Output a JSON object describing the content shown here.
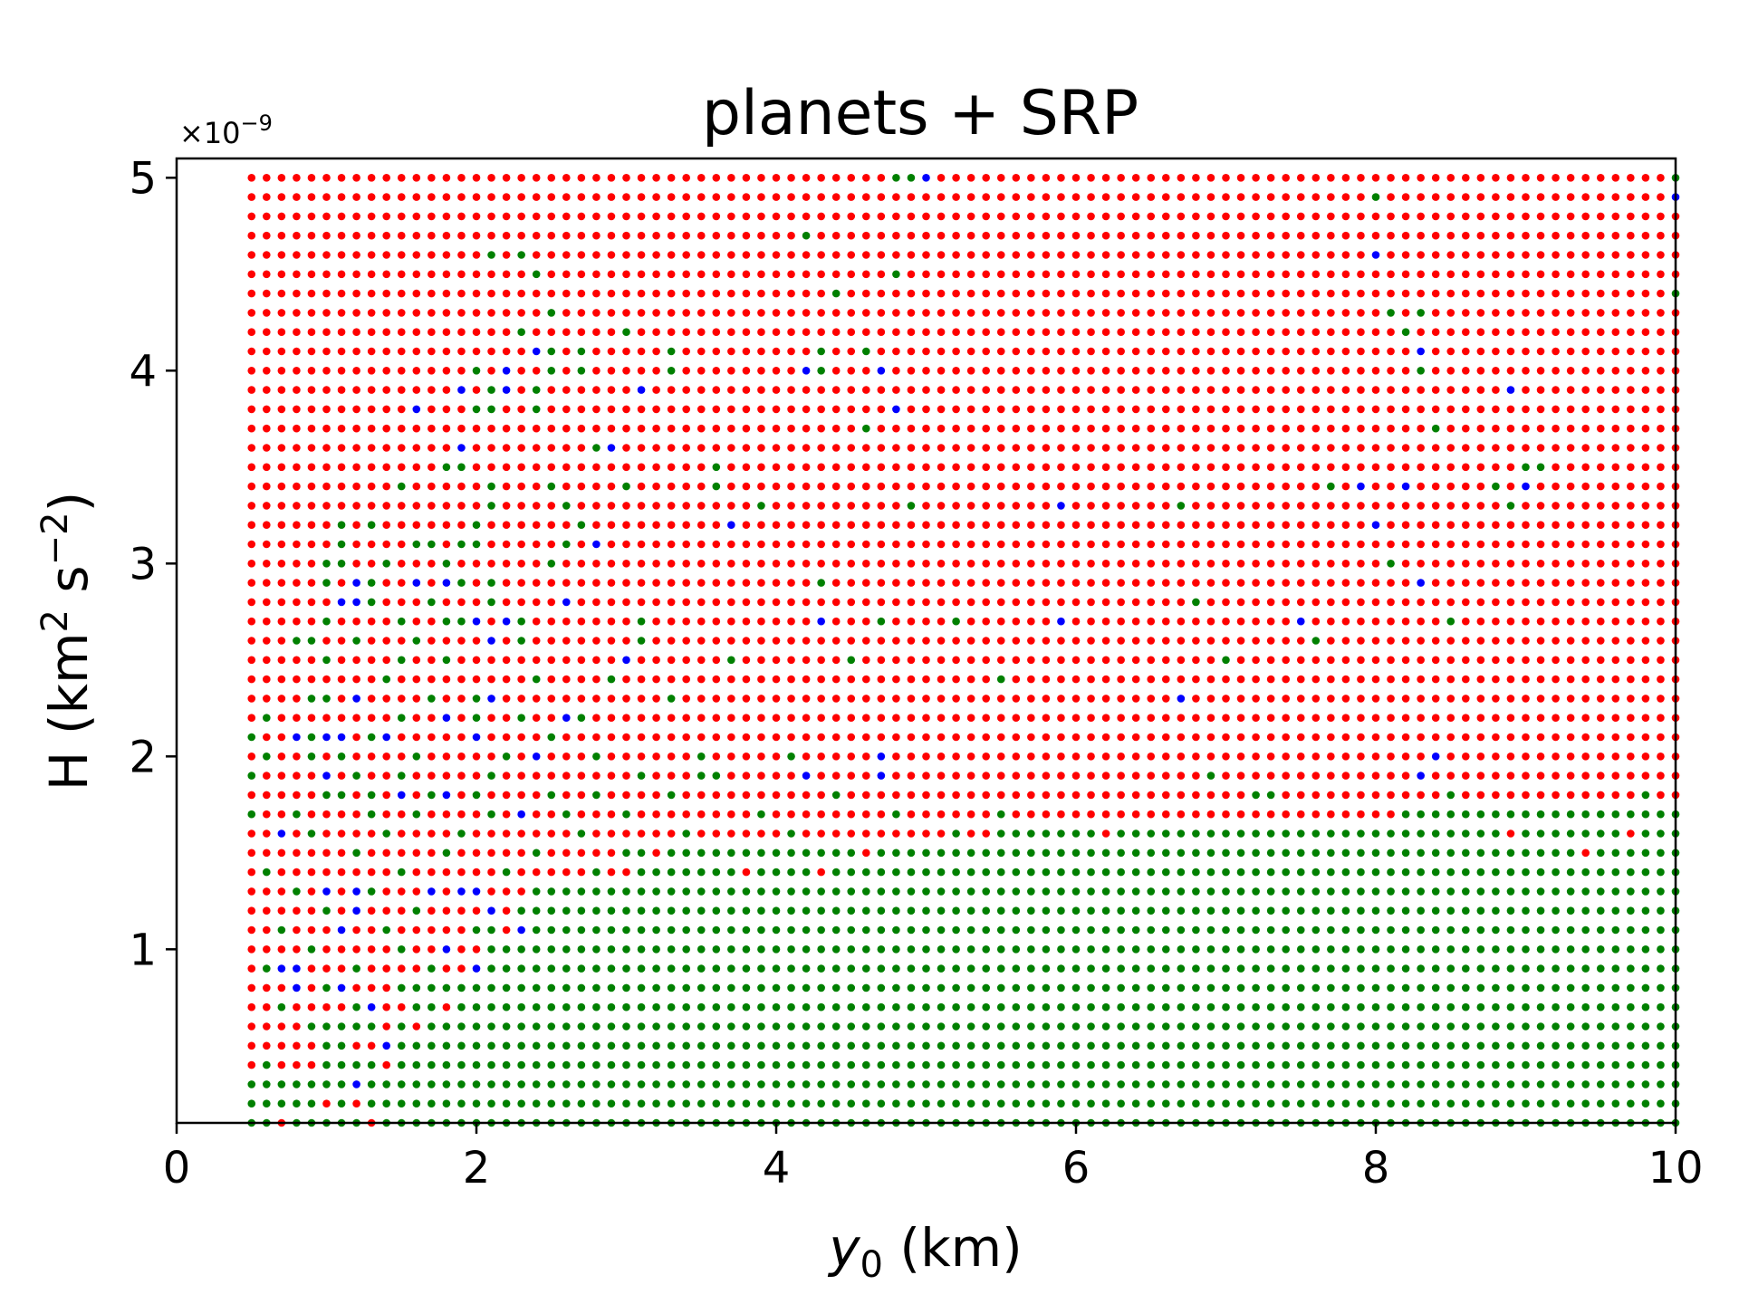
{
  "chart_data": {
    "type": "scatter",
    "title": "planets + SRP",
    "xlabel_var": "y",
    "xlabel_sub": "0",
    "xlabel_unit": " (km)",
    "ylabel_main": "H (km",
    "ylabel_sup1": "2",
    "ylabel_mid": " s",
    "ylabel_sup2": "−2",
    "ylabel_end": ")",
    "y_offset_text": "×10",
    "y_offset_exp": "−9",
    "xlim": [
      0,
      10
    ],
    "ylim": [
      0.1,
      5.1
    ],
    "y_scale": 1e-09,
    "xticks": [
      0,
      2,
      4,
      6,
      8,
      10
    ],
    "yticks": [
      1,
      2,
      3,
      4,
      5
    ],
    "x_grid": {
      "start": 0.5,
      "step": 0.1,
      "count": 96
    },
    "y_grid": {
      "start": 0.1,
      "step": 0.1,
      "count": 50
    },
    "colors": {
      "red": "#ff0000",
      "green": "#008000",
      "blue": "#0000ff"
    },
    "grid": false,
    "green_boundary_y": [
      {
        "x_from": 0.5,
        "x_to": 1.0,
        "y_max": 0.3
      },
      {
        "x_from": 1.0,
        "x_to": 1.6,
        "y_max": 0.6
      },
      {
        "x_from": 1.6,
        "x_to": 2.0,
        "y_max": 0.8
      },
      {
        "x_from": 2.0,
        "x_to": 2.4,
        "y_max": 1.1
      },
      {
        "x_from": 2.4,
        "x_to": 3.1,
        "y_max": 1.3
      },
      {
        "x_from": 3.1,
        "x_to": 4.0,
        "y_max": 1.5
      },
      {
        "x_from": 4.0,
        "x_to": 5.5,
        "y_max": 1.5
      },
      {
        "x_from": 5.5,
        "x_to": 8.2,
        "y_max": 1.6
      },
      {
        "x_from": 8.2,
        "x_to": 10.01,
        "y_max": 1.7
      }
    ],
    "blue_points": [
      [
        5.0,
        5.0
      ],
      [
        10.0,
        4.9
      ],
      [
        8.0,
        4.6
      ],
      [
        2.4,
        4.1
      ],
      [
        8.3,
        4.1
      ],
      [
        2.2,
        4.0
      ],
      [
        4.2,
        4.0
      ],
      [
        4.7,
        4.0
      ],
      [
        1.9,
        3.9
      ],
      [
        2.2,
        3.9
      ],
      [
        3.1,
        3.9
      ],
      [
        8.9,
        3.9
      ],
      [
        1.6,
        3.8
      ],
      [
        4.8,
        3.8
      ],
      [
        1.9,
        3.6
      ],
      [
        2.9,
        3.6
      ],
      [
        7.9,
        3.4
      ],
      [
        8.2,
        3.4
      ],
      [
        9.0,
        3.4
      ],
      [
        5.9,
        3.3
      ],
      [
        3.7,
        3.2
      ],
      [
        8.0,
        3.2
      ],
      [
        2.8,
        3.1
      ],
      [
        1.2,
        2.9
      ],
      [
        1.6,
        2.9
      ],
      [
        1.8,
        2.9
      ],
      [
        8.3,
        2.9
      ],
      [
        1.1,
        2.8
      ],
      [
        1.2,
        2.8
      ],
      [
        2.6,
        2.8
      ],
      [
        2.0,
        2.7
      ],
      [
        2.2,
        2.7
      ],
      [
        4.3,
        2.7
      ],
      [
        5.9,
        2.7
      ],
      [
        7.5,
        2.7
      ],
      [
        2.1,
        2.6
      ],
      [
        3.0,
        2.5
      ],
      [
        1.2,
        2.3
      ],
      [
        2.1,
        2.3
      ],
      [
        6.7,
        2.3
      ],
      [
        1.8,
        2.2
      ],
      [
        2.6,
        2.2
      ],
      [
        0.8,
        2.1
      ],
      [
        1.0,
        2.1
      ],
      [
        1.1,
        2.1
      ],
      [
        1.4,
        2.1
      ],
      [
        2.0,
        2.1
      ],
      [
        2.4,
        2.0
      ],
      [
        4.7,
        2.0
      ],
      [
        8.4,
        2.0
      ],
      [
        1.0,
        1.9
      ],
      [
        4.2,
        1.9
      ],
      [
        4.7,
        1.9
      ],
      [
        8.3,
        1.9
      ],
      [
        1.5,
        1.8
      ],
      [
        1.8,
        1.8
      ],
      [
        2.3,
        1.7
      ],
      [
        0.7,
        1.6
      ],
      [
        1.0,
        1.3
      ],
      [
        1.2,
        1.3
      ],
      [
        1.7,
        1.3
      ],
      [
        1.9,
        1.3
      ],
      [
        2.0,
        1.3
      ],
      [
        1.2,
        1.2
      ],
      [
        2.1,
        1.2
      ],
      [
        1.1,
        1.1
      ],
      [
        2.3,
        1.1
      ],
      [
        1.8,
        1.0
      ],
      [
        0.7,
        0.9
      ],
      [
        0.8,
        0.9
      ],
      [
        2.0,
        0.9
      ],
      [
        0.8,
        0.8
      ],
      [
        1.1,
        0.8
      ],
      [
        1.3,
        0.7
      ],
      [
        1.4,
        0.5
      ],
      [
        1.2,
        0.3
      ]
    ],
    "green_in_red": [
      [
        4.8,
        5.0
      ],
      [
        4.9,
        5.0
      ],
      [
        10.0,
        5.0
      ],
      [
        8.0,
        4.9
      ],
      [
        4.2,
        4.7
      ],
      [
        2.1,
        4.6
      ],
      [
        2.3,
        4.6
      ],
      [
        2.4,
        4.5
      ],
      [
        4.8,
        4.5
      ],
      [
        4.4,
        4.4
      ],
      [
        10.0,
        4.4
      ],
      [
        2.5,
        4.3
      ],
      [
        8.1,
        4.3
      ],
      [
        8.3,
        4.3
      ],
      [
        2.3,
        4.2
      ],
      [
        3.0,
        4.2
      ],
      [
        8.2,
        4.2
      ],
      [
        2.5,
        4.1
      ],
      [
        2.7,
        4.1
      ],
      [
        3.3,
        4.1
      ],
      [
        4.3,
        4.1
      ],
      [
        4.6,
        4.1
      ],
      [
        2.0,
        4.0
      ],
      [
        2.5,
        4.0
      ],
      [
        2.7,
        4.0
      ],
      [
        3.3,
        4.0
      ],
      [
        4.3,
        4.0
      ],
      [
        8.3,
        4.0
      ],
      [
        2.1,
        3.9
      ],
      [
        2.4,
        3.9
      ],
      [
        2.0,
        3.8
      ],
      [
        2.1,
        3.8
      ],
      [
        2.4,
        3.8
      ],
      [
        4.6,
        3.7
      ],
      [
        8.4,
        3.7
      ],
      [
        2.8,
        3.6
      ],
      [
        1.8,
        3.5
      ],
      [
        1.9,
        3.5
      ],
      [
        3.6,
        3.5
      ],
      [
        9.0,
        3.5
      ],
      [
        9.1,
        3.5
      ],
      [
        1.5,
        3.4
      ],
      [
        2.1,
        3.4
      ],
      [
        2.5,
        3.4
      ],
      [
        3.0,
        3.4
      ],
      [
        3.6,
        3.4
      ],
      [
        7.7,
        3.4
      ],
      [
        8.8,
        3.4
      ],
      [
        2.1,
        3.3
      ],
      [
        2.6,
        3.3
      ],
      [
        3.9,
        3.3
      ],
      [
        4.9,
        3.3
      ],
      [
        6.7,
        3.3
      ],
      [
        8.9,
        3.3
      ],
      [
        1.1,
        3.2
      ],
      [
        1.3,
        3.2
      ],
      [
        2.0,
        3.2
      ],
      [
        2.7,
        3.2
      ],
      [
        1.1,
        3.1
      ],
      [
        1.6,
        3.1
      ],
      [
        1.7,
        3.1
      ],
      [
        1.9,
        3.1
      ],
      [
        2.0,
        3.1
      ],
      [
        2.6,
        3.1
      ],
      [
        1.0,
        3.0
      ],
      [
        1.1,
        3.0
      ],
      [
        1.4,
        3.0
      ],
      [
        1.8,
        3.0
      ],
      [
        2.5,
        3.0
      ],
      [
        8.1,
        3.0
      ],
      [
        1.0,
        2.9
      ],
      [
        1.3,
        2.9
      ],
      [
        1.9,
        2.9
      ],
      [
        2.1,
        2.9
      ],
      [
        4.3,
        2.9
      ],
      [
        1.3,
        2.8
      ],
      [
        1.7,
        2.8
      ],
      [
        2.1,
        2.8
      ],
      [
        6.8,
        2.8
      ],
      [
        1.0,
        2.7
      ],
      [
        1.5,
        2.7
      ],
      [
        1.8,
        2.7
      ],
      [
        1.9,
        2.7
      ],
      [
        2.3,
        2.7
      ],
      [
        3.1,
        2.7
      ],
      [
        4.7,
        2.7
      ],
      [
        5.2,
        2.7
      ],
      [
        8.5,
        2.7
      ],
      [
        0.8,
        2.6
      ],
      [
        0.9,
        2.6
      ],
      [
        1.2,
        2.6
      ],
      [
        1.6,
        2.6
      ],
      [
        2.3,
        2.6
      ],
      [
        3.1,
        2.6
      ],
      [
        7.6,
        2.6
      ],
      [
        1.0,
        2.5
      ],
      [
        1.5,
        2.5
      ],
      [
        1.8,
        2.5
      ],
      [
        3.7,
        2.5
      ],
      [
        4.5,
        2.5
      ],
      [
        7.0,
        2.5
      ],
      [
        1.4,
        2.4
      ],
      [
        2.4,
        2.4
      ],
      [
        2.9,
        2.4
      ],
      [
        5.5,
        2.4
      ],
      [
        0.9,
        2.3
      ],
      [
        1.0,
        2.3
      ],
      [
        1.7,
        2.3
      ],
      [
        2.0,
        2.3
      ],
      [
        3.3,
        2.3
      ],
      [
        0.6,
        2.2
      ],
      [
        1.5,
        2.2
      ],
      [
        2.0,
        2.2
      ],
      [
        2.3,
        2.2
      ],
      [
        2.7,
        2.2
      ],
      [
        0.5,
        2.1
      ],
      [
        0.9,
        2.1
      ],
      [
        1.3,
        2.1
      ],
      [
        2.5,
        2.1
      ],
      [
        0.6,
        2.0
      ],
      [
        0.9,
        2.0
      ],
      [
        1.1,
        2.0
      ],
      [
        1.6,
        2.0
      ],
      [
        2.2,
        2.0
      ],
      [
        2.8,
        2.0
      ],
      [
        3.5,
        2.0
      ],
      [
        4.1,
        2.0
      ],
      [
        0.5,
        1.9
      ],
      [
        1.2,
        1.9
      ],
      [
        1.5,
        1.9
      ],
      [
        2.1,
        1.9
      ],
      [
        3.1,
        1.9
      ],
      [
        3.5,
        1.9
      ],
      [
        3.6,
        1.9
      ],
      [
        6.9,
        1.9
      ],
      [
        1.0,
        1.8
      ],
      [
        1.1,
        1.8
      ],
      [
        1.3,
        1.8
      ],
      [
        1.7,
        1.8
      ],
      [
        2.0,
        1.8
      ],
      [
        2.5,
        1.8
      ],
      [
        2.8,
        1.8
      ],
      [
        3.3,
        1.8
      ],
      [
        4.4,
        1.8
      ],
      [
        7.2,
        1.8
      ],
      [
        7.3,
        1.8
      ],
      [
        8.5,
        1.8
      ],
      [
        9.8,
        1.8
      ],
      [
        0.5,
        1.7
      ],
      [
        0.8,
        1.7
      ],
      [
        1.3,
        1.7
      ],
      [
        1.6,
        1.7
      ],
      [
        2.1,
        1.7
      ],
      [
        2.6,
        1.7
      ],
      [
        3.0,
        1.7
      ],
      [
        3.9,
        1.7
      ],
      [
        4.8,
        1.7
      ],
      [
        5.5,
        1.7
      ],
      [
        0.9,
        1.6
      ],
      [
        1.4,
        1.6
      ],
      [
        1.9,
        1.6
      ],
      [
        2.7,
        1.6
      ],
      [
        3.4,
        1.6
      ],
      [
        4.1,
        1.6
      ],
      [
        5.2,
        1.6
      ],
      [
        1.2,
        1.5
      ],
      [
        1.8,
        1.5
      ],
      [
        2.4,
        1.5
      ],
      [
        3.0,
        1.5
      ],
      [
        0.6,
        1.4
      ],
      [
        1.5,
        1.4
      ],
      [
        2.2,
        1.4
      ],
      [
        2.8,
        1.4
      ],
      [
        0.8,
        1.3
      ],
      [
        1.3,
        1.3
      ],
      [
        2.5,
        1.3
      ],
      [
        1.0,
        1.2
      ],
      [
        1.6,
        1.2
      ],
      [
        2.3,
        1.2
      ],
      [
        0.7,
        1.1
      ],
      [
        1.4,
        1.1
      ],
      [
        2.0,
        1.1
      ],
      [
        0.9,
        1.0
      ],
      [
        1.5,
        1.0
      ],
      [
        0.6,
        0.9
      ],
      [
        1.2,
        0.9
      ],
      [
        1.7,
        0.9
      ],
      [
        1.0,
        0.8
      ],
      [
        1.5,
        0.8
      ],
      [
        0.7,
        0.7
      ],
      [
        1.2,
        0.7
      ],
      [
        0.9,
        0.6
      ],
      [
        1.1,
        0.5
      ],
      [
        0.6,
        0.4
      ],
      [
        0.8,
        0.3
      ],
      [
        0.5,
        0.2
      ]
    ],
    "red_in_green": [
      [
        9.4,
        1.5
      ],
      [
        9.7,
        1.6
      ],
      [
        8.9,
        1.6
      ],
      [
        6.2,
        1.6
      ],
      [
        4.6,
        1.5
      ],
      [
        4.3,
        1.4
      ],
      [
        3.8,
        1.4
      ],
      [
        1.2,
        0.5
      ],
      [
        1.3,
        0.5
      ],
      [
        1.4,
        0.6
      ],
      [
        1.6,
        0.6
      ],
      [
        1.8,
        0.7
      ],
      [
        1.5,
        0.8
      ],
      [
        1.9,
        0.9
      ],
      [
        2.2,
        1.1
      ],
      [
        2.0,
        1.0
      ],
      [
        1.4,
        0.4
      ],
      [
        1.0,
        0.2
      ],
      [
        1.2,
        0.2
      ],
      [
        1.3,
        0.1
      ],
      [
        0.7,
        0.1
      ],
      [
        1.5,
        1.4
      ],
      [
        2.2,
        1.2
      ],
      [
        2.6,
        1.4
      ],
      [
        2.8,
        1.5
      ],
      [
        3.2,
        1.5
      ]
    ]
  }
}
